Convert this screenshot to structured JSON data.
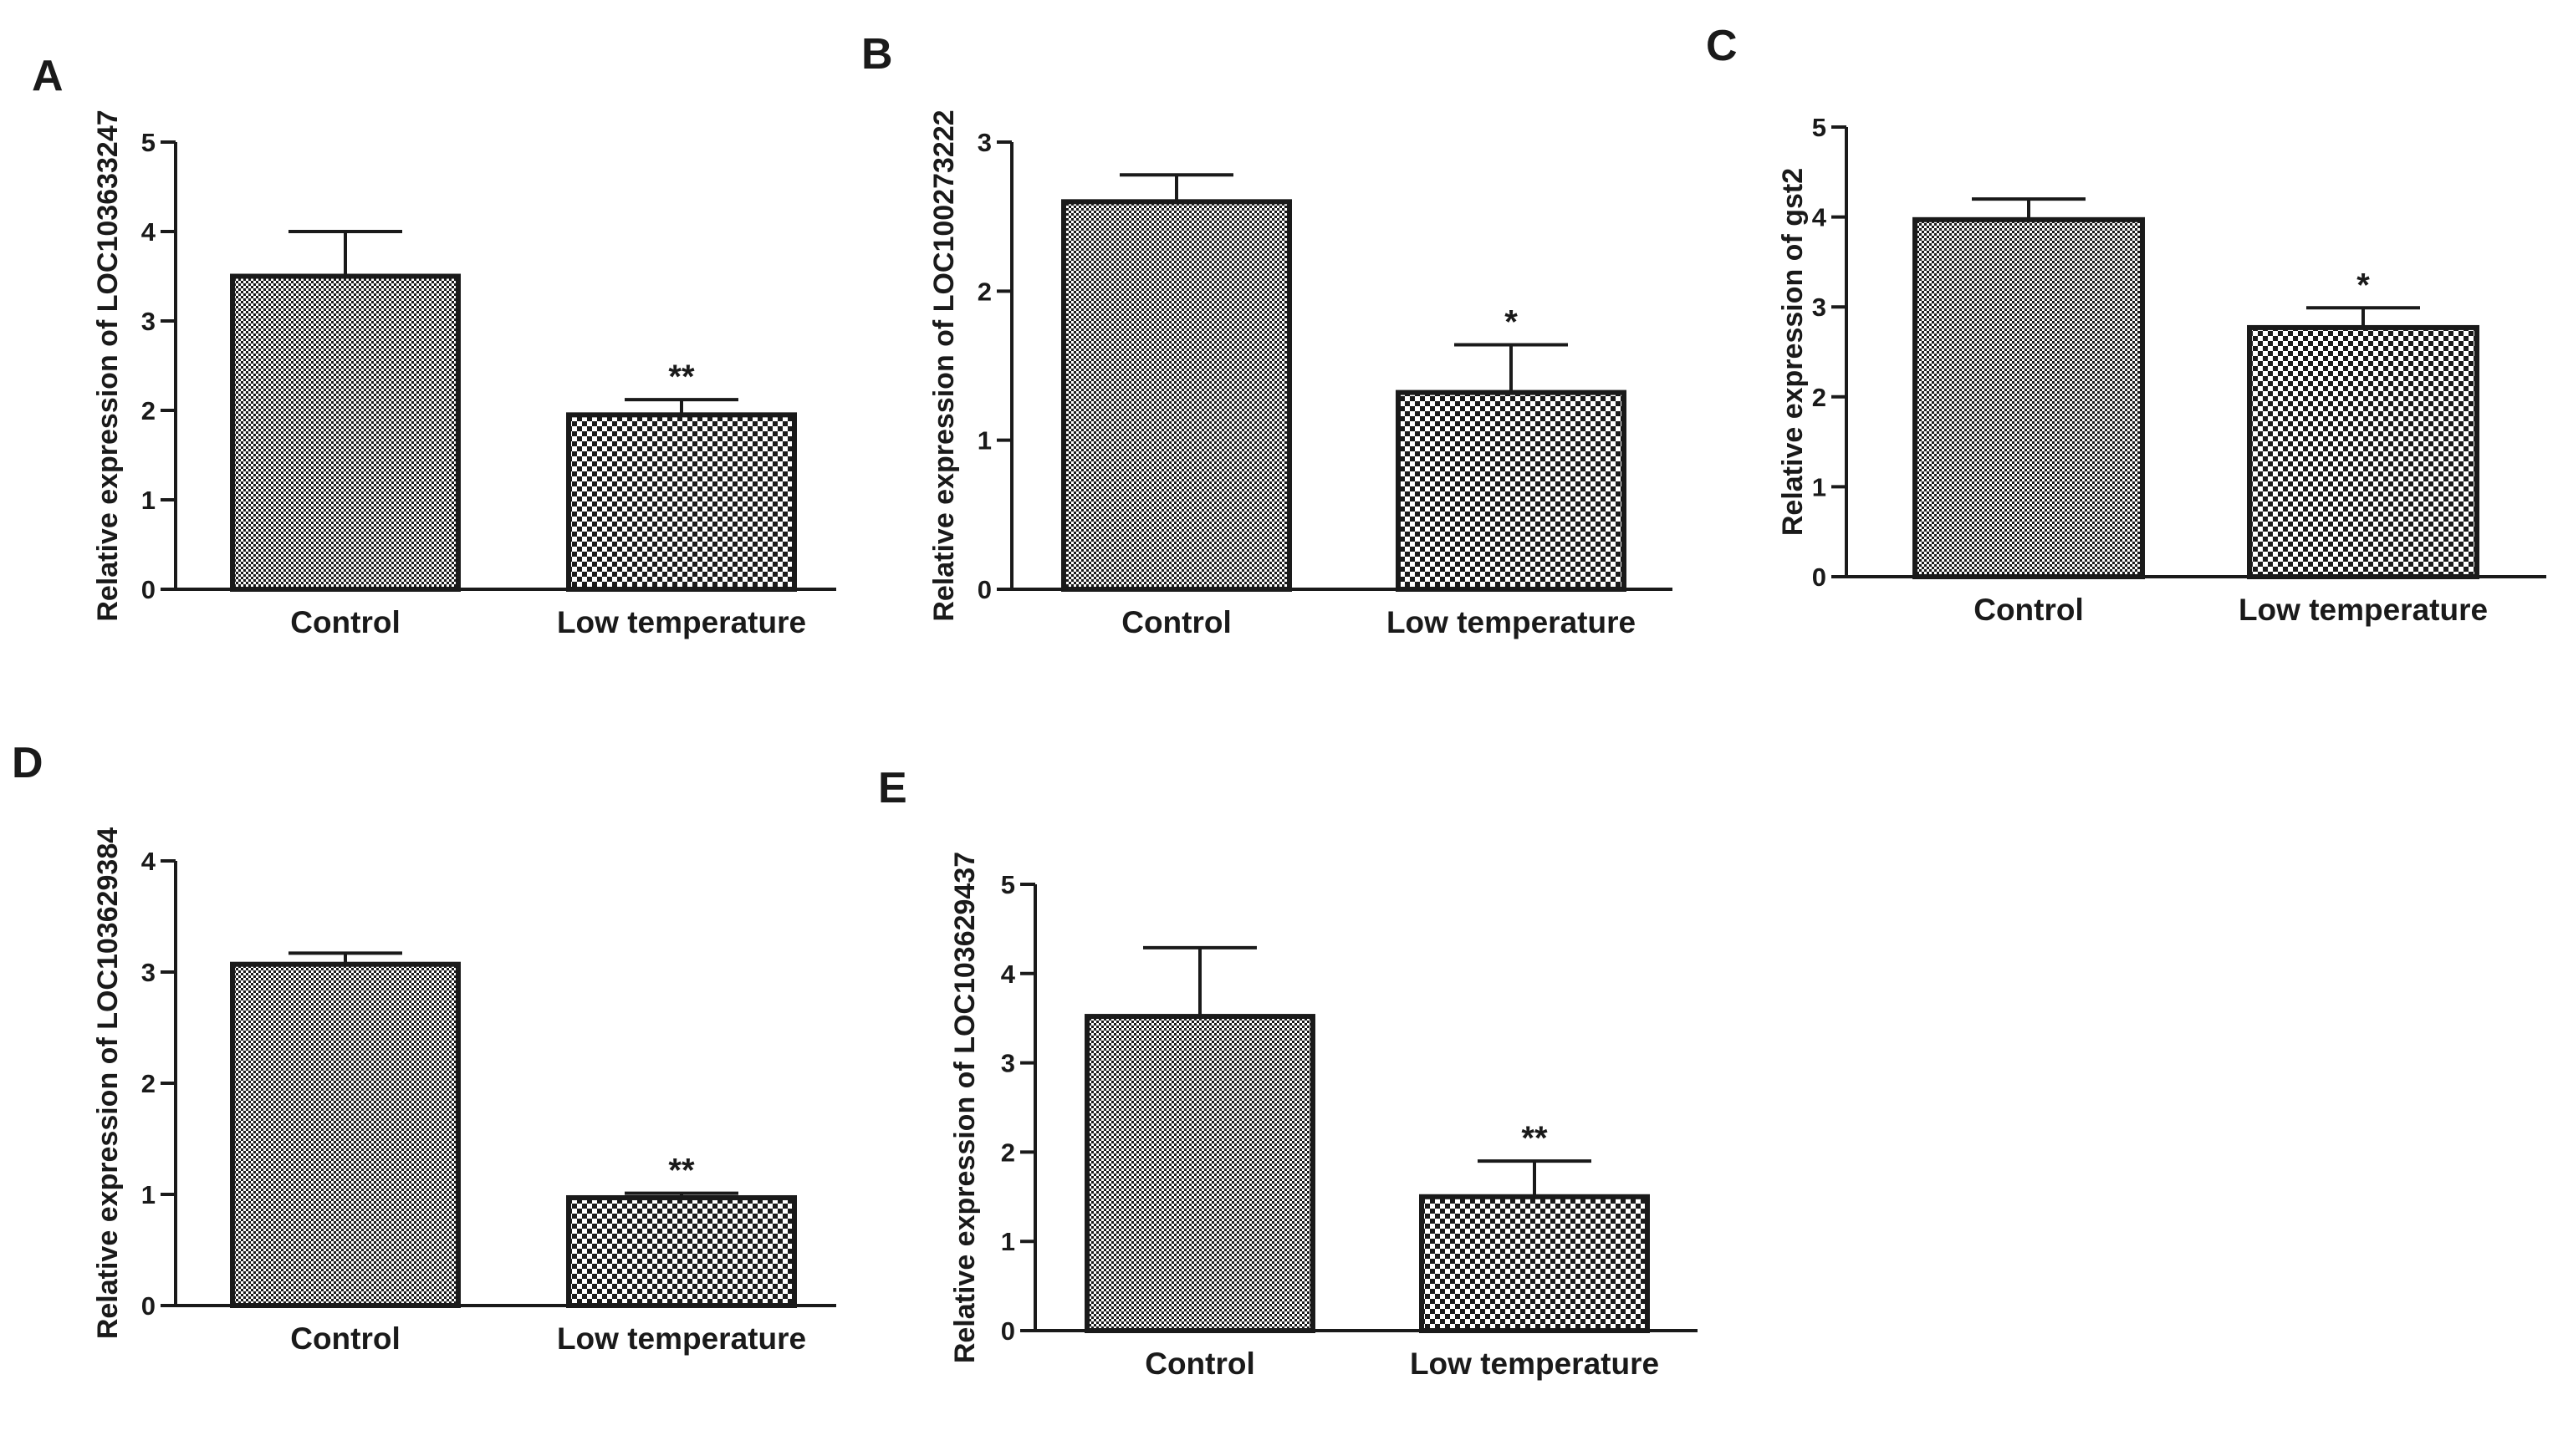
{
  "figure": {
    "colors": {
      "ink": "#1a1a1a",
      "background": "#ffffff",
      "control_fill": "#8c8c8c",
      "low_fill": "#b3b3b3"
    },
    "patterns": [
      "fine-dot-pattern",
      "checker-pattern"
    ]
  },
  "chart_data": [
    {
      "type": "bar",
      "panel": "A",
      "categories": [
        "Control",
        "Low temperature"
      ],
      "values": [
        3.5,
        1.95
      ],
      "errors": [
        0.5,
        0.17
      ],
      "significance": [
        "",
        "**"
      ],
      "ylabel": "Relative expression of LOC103633247",
      "xlabel": "",
      "ylim": [
        0,
        5
      ],
      "yticks": [
        "0",
        "1",
        "2",
        "3",
        "4",
        "5"
      ]
    },
    {
      "type": "bar",
      "panel": "B",
      "categories": [
        "Control",
        "Low temperature"
      ],
      "values": [
        2.6,
        1.32
      ],
      "errors": [
        0.18,
        0.32
      ],
      "significance": [
        "",
        "*"
      ],
      "ylabel": "Relative expression of LOC100273222",
      "xlabel": "",
      "ylim": [
        0,
        3
      ],
      "yticks": [
        "0",
        "1",
        "2",
        "3"
      ]
    },
    {
      "type": "bar",
      "panel": "C",
      "categories": [
        "Control",
        "Low temperature"
      ],
      "values": [
        3.97,
        2.77
      ],
      "errors": [
        0.23,
        0.22
      ],
      "significance": [
        "",
        "*"
      ],
      "ylabel": "Relative expression of  gst2",
      "xlabel": "",
      "ylim": [
        0,
        5
      ],
      "yticks": [
        "0",
        "1",
        "2",
        "3",
        "4",
        "5"
      ]
    },
    {
      "type": "bar",
      "panel": "D",
      "categories": [
        "Control",
        "Low temperature"
      ],
      "values": [
        3.07,
        0.97
      ],
      "errors": [
        0.1,
        0.04
      ],
      "significance": [
        "",
        "**"
      ],
      "ylabel": "Relative expression of LOC103629384",
      "xlabel": "",
      "ylim": [
        0,
        4
      ],
      "yticks": [
        "0",
        "1",
        "2",
        "3",
        "4"
      ]
    },
    {
      "type": "bar",
      "panel": "E",
      "categories": [
        "Control",
        "Low temperature"
      ],
      "values": [
        3.52,
        1.5
      ],
      "errors": [
        0.77,
        0.4
      ],
      "significance": [
        "",
        "**"
      ],
      "ylabel": "Relative expression of LOC103629437",
      "xlabel": "",
      "ylim": [
        0,
        5
      ],
      "yticks": [
        "0",
        "1",
        "2",
        "3",
        "4",
        "5"
      ]
    }
  ]
}
